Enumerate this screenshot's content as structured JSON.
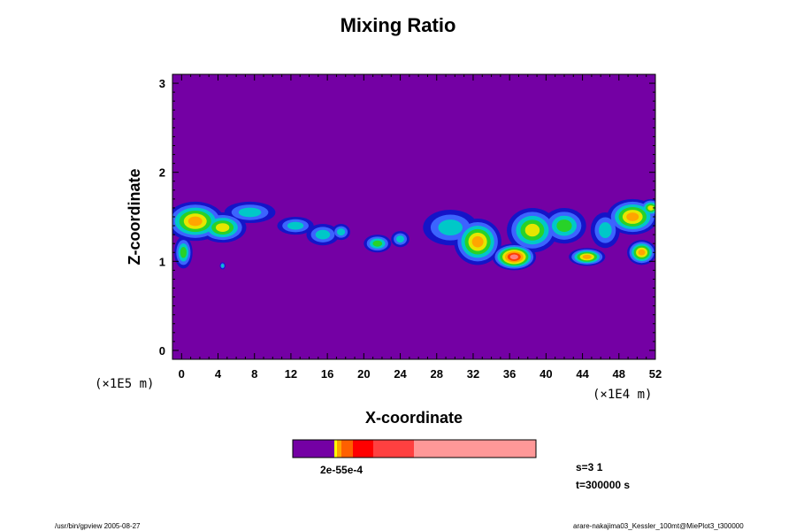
{
  "chart_data": {
    "type": "heatmap",
    "title": "Mixing Ratio",
    "xlabel": "X-coordinate",
    "ylabel": "Z-coordinate",
    "x_unit": "(×1E4 m)",
    "y_unit": "(×1E5 m)",
    "x_ticks": [
      "0",
      "4",
      "8",
      "12",
      "16",
      "20",
      "24",
      "28",
      "32",
      "36",
      "40",
      "44",
      "48",
      "52"
    ],
    "y_ticks": [
      "0",
      "1",
      "2",
      "3"
    ],
    "xlim": [
      -1,
      52
    ],
    "ylim": [
      -0.1,
      3.1
    ],
    "background_color": "#7400a4",
    "layer_colors": [
      "#1414c8",
      "#3c64ff",
      "#00c8c8",
      "#28d228",
      "#e6e600",
      "#ffa500",
      "#ff3c00",
      "#ff8080",
      "#ffffff"
    ],
    "colorbar": {
      "colors": [
        "#7400a4",
        "#ffff00",
        "#ffa500",
        "#ff6000",
        "#ff0000",
        "#ff4040",
        "#ff9898"
      ],
      "label": "2e-55e-4"
    },
    "info": {
      "s": "s=3 1",
      "t": "t=300000 s"
    },
    "footer_left": "/usr/bin/gpview 2005-08-27",
    "footer_right": "arare-nakajima03_Kessler_100mt@MiePlot3_t300000"
  }
}
